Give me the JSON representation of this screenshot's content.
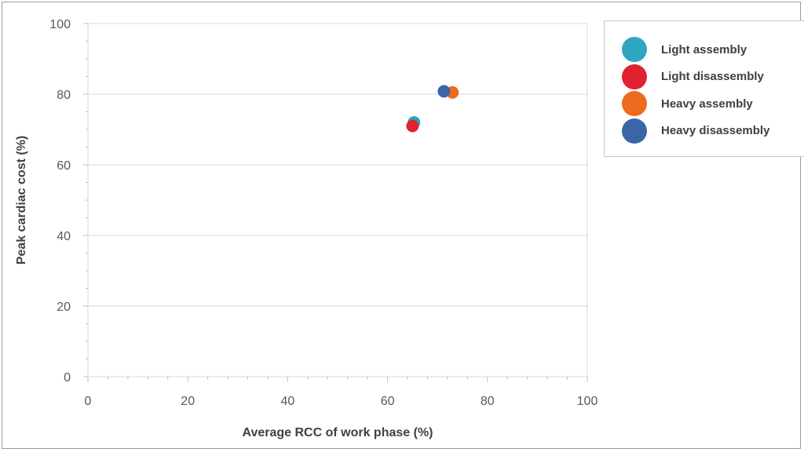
{
  "chart_data": {
    "type": "scatter",
    "title": "",
    "xlabel": "Average RCC of work phase (%)",
    "ylabel": "Peak cardiac cost (%)",
    "xlim": [
      0,
      100
    ],
    "ylim": [
      0,
      100
    ],
    "xticks": [
      "0",
      "20",
      "40",
      "60",
      "80",
      "100"
    ],
    "yticks": [
      "0",
      "20",
      "40",
      "60",
      "80",
      "100"
    ],
    "grid": true,
    "legend_position": "right",
    "series": [
      {
        "name": "Light assembly",
        "color": "#2ea6c2",
        "points": [
          {
            "x": 65.3,
            "y": 72.0
          }
        ]
      },
      {
        "name": "Light disassembly",
        "color": "#e0212f",
        "points": [
          {
            "x": 65.0,
            "y": 71.0
          }
        ]
      },
      {
        "name": "Heavy assembly",
        "color": "#ee6a1e",
        "points": [
          {
            "x": 73.0,
            "y": 80.5
          }
        ]
      },
      {
        "name": "Heavy disassembly",
        "color": "#3a65a6",
        "points": [
          {
            "x": 71.3,
            "y": 80.8
          }
        ]
      }
    ]
  }
}
